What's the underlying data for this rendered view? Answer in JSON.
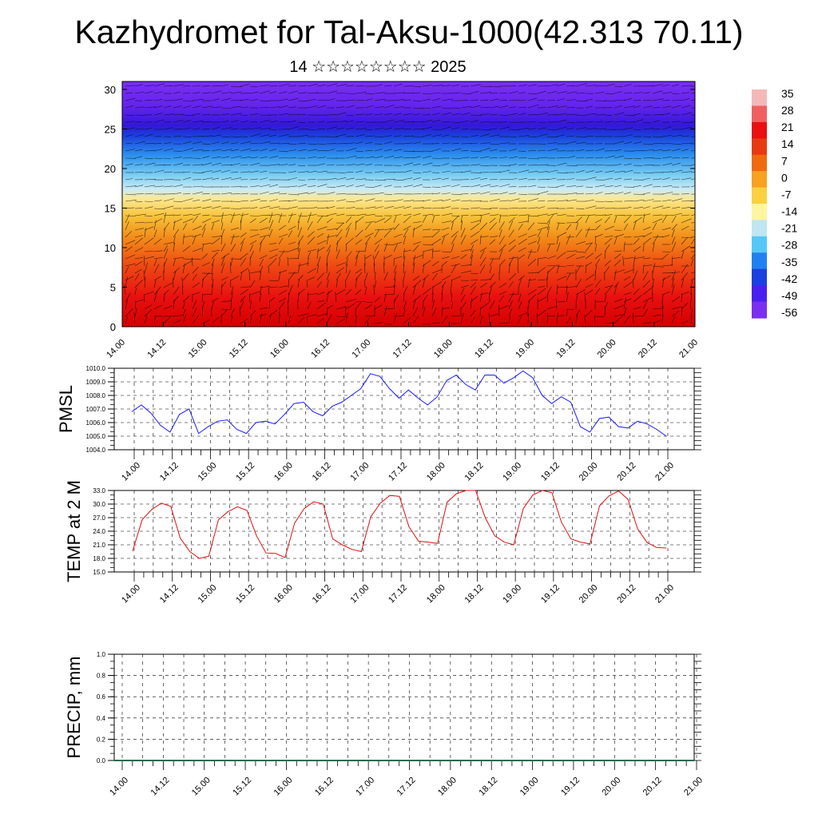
{
  "header": {
    "title": "Kazhydromet for Tal-Aksu-1000(42.313 70.11)",
    "subtitle": "14 ☆☆☆☆☆☆☆☆ 2025"
  },
  "colors": {
    "pmsl_line": "#1a1aff",
    "temp_line": "#e01010",
    "precip_line": "#2e6b4f",
    "grid": "#000000",
    "cold": "#6a1ff0",
    "warm": "#d00000"
  },
  "chart_data": [
    {
      "id": "cross-section",
      "type": "heatmap",
      "title": "",
      "xlabel": "",
      "ylabel": "",
      "x_ticks": [
        "14.00",
        "14.12",
        "15.00",
        "15.12",
        "16.00",
        "16.12",
        "17.00",
        "17.12",
        "18.00",
        "18.12",
        "19.00",
        "19.12",
        "20.00",
        "20.12",
        "21.00"
      ],
      "y_ticks": [
        "0",
        "5",
        "10",
        "15",
        "20",
        "25",
        "30"
      ],
      "ylim": [
        0,
        31
      ],
      "colorbar_labels": [
        "35",
        "28",
        "21",
        "14",
        "7",
        "0",
        "-7",
        "-14",
        "-21",
        "-28",
        "-35",
        "-42",
        "-49",
        "-56"
      ],
      "colorbar_colors": [
        "#f4b8b8",
        "#f06060",
        "#e81010",
        "#e83a10",
        "#f06a10",
        "#f8a020",
        "#fcd040",
        "#fff5a0",
        "#bfe6f2",
        "#55c8f5",
        "#2080f0",
        "#1a40e0",
        "#4a20f0",
        "#7a30f0"
      ]
    },
    {
      "id": "pmsl",
      "type": "line",
      "ylabel": "PMSL",
      "ylim": [
        1004.0,
        1010.0
      ],
      "y_ticks": [
        "1004.0",
        "1005.0",
        "1006.0",
        "1007.0",
        "1008.0",
        "1009.0",
        "1010.0"
      ],
      "x_ticks": [
        "14.00",
        "14.12",
        "15.00",
        "15.12",
        "16.00",
        "16.12",
        "17.00",
        "17.12",
        "18.00",
        "18.12",
        "19.00",
        "19.12",
        "20.00",
        "20.12",
        "21.00"
      ],
      "values": [
        1006.8,
        1007.3,
        1006.7,
        1005.8,
        1005.3,
        1006.6,
        1007.0,
        1005.2,
        1005.7,
        1006.1,
        1006.2,
        1005.5,
        1005.2,
        1006.0,
        1006.1,
        1005.9,
        1006.6,
        1007.4,
        1007.5,
        1006.8,
        1006.5,
        1007.2,
        1007.5,
        1008.0,
        1008.5,
        1009.6,
        1009.4,
        1008.5,
        1007.8,
        1008.4,
        1007.8,
        1007.3,
        1007.9,
        1009.1,
        1009.5,
        1008.8,
        1008.4,
        1009.5,
        1009.5,
        1008.9,
        1009.3,
        1009.8,
        1009.3,
        1008.0,
        1007.4,
        1007.9,
        1007.5,
        1005.7,
        1005.3,
        1006.3,
        1006.4,
        1005.7,
        1005.6,
        1006.1,
        1005.9,
        1005.5,
        1005.0
      ]
    },
    {
      "id": "temp2m",
      "type": "line",
      "ylabel": "TEMP at 2 M",
      "ylim": [
        15.0,
        33.0
      ],
      "y_ticks": [
        "15.0",
        "18.0",
        "21.0",
        "24.0",
        "27.0",
        "30.0",
        "33.0"
      ],
      "x_ticks": [
        "14.00",
        "14.12",
        "15.00",
        "15.12",
        "16.00",
        "16.12",
        "17.00",
        "17.12",
        "18.00",
        "18.12",
        "19.00",
        "19.12",
        "20.00",
        "20.12",
        "21.00"
      ],
      "values": [
        19.6,
        26.5,
        28.8,
        30.2,
        29.5,
        22.5,
        19.5,
        18.0,
        18.5,
        26.5,
        28.3,
        29.4,
        28.6,
        23.0,
        19.2,
        19.1,
        18.2,
        25.8,
        29.0,
        30.5,
        30.0,
        22.3,
        21.0,
        20.0,
        19.5,
        27.2,
        30.2,
        31.9,
        31.7,
        25.0,
        21.8,
        21.6,
        21.3,
        30.4,
        32.3,
        33.0,
        33.0,
        27.0,
        23.0,
        21.6,
        21.0,
        29.0,
        32.0,
        33.0,
        32.5,
        26.0,
        22.3,
        21.6,
        21.2,
        29.6,
        31.8,
        32.9,
        31.0,
        24.5,
        21.5,
        20.4,
        20.3
      ]
    },
    {
      "id": "precip",
      "type": "line",
      "ylabel": "PRECIP, mm",
      "ylim": [
        0.0,
        1.0
      ],
      "y_ticks": [
        "0.0",
        "0.2",
        "0.4",
        "0.6",
        "0.8",
        "1.0"
      ],
      "x_ticks": [
        "14.00",
        "14.12",
        "15.00",
        "15.12",
        "16.00",
        "16.12",
        "17.00",
        "17.12",
        "18.00",
        "18.12",
        "19.00",
        "19.12",
        "20.00",
        "20.12",
        "21.00"
      ],
      "values": [
        0,
        0,
        0,
        0,
        0,
        0,
        0,
        0,
        0,
        0,
        0,
        0,
        0,
        0,
        0
      ]
    }
  ]
}
